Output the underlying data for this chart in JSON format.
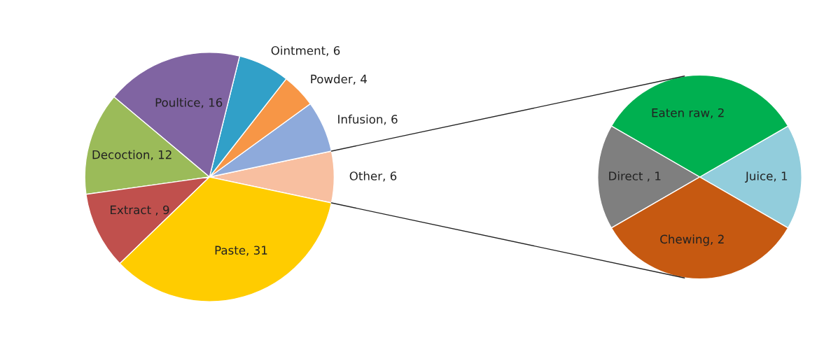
{
  "chart_data": [
    {
      "type": "pie",
      "categories": [
        "Other",
        "Infusion",
        "Powder",
        "Ointment",
        "Poultice",
        "Decoction",
        "Extract ",
        "Paste"
      ],
      "values": [
        6,
        6,
        4,
        6,
        16,
        12,
        9,
        31
      ],
      "colors": [
        "#f8bfa0",
        "#8eaadb",
        "#f79646",
        "#31a0c8",
        "#8064a2",
        "#9bbb59",
        "#c0504d",
        "#ffcc00"
      ],
      "value_labels": [
        ", 6",
        ", 6",
        ", 4",
        ", 6",
        ", 16",
        ", 12",
        ", 9",
        ", 31"
      ]
    },
    {
      "type": "pie",
      "categories": [
        "Juice",
        "Eaten raw",
        "Direct ",
        "Chewing"
      ],
      "values": [
        1,
        2,
        1,
        2
      ],
      "colors": [
        "#92cddc",
        "#00b050",
        "#7f7f7f",
        "#c65911"
      ],
      "value_labels": [
        ", 1",
        ", 2",
        ", 1",
        ", 2"
      ]
    }
  ]
}
